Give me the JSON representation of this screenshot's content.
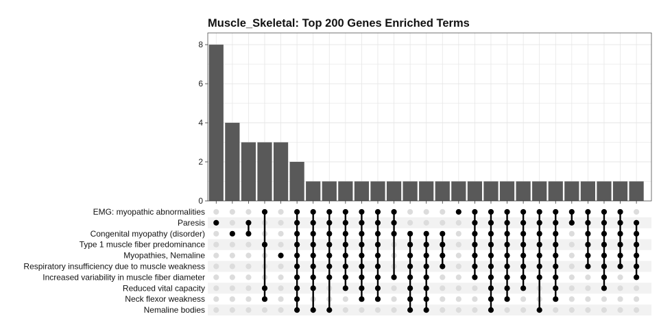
{
  "chart_data": {
    "type": "bar",
    "title": "Muscle_Skeletal: Top 200 Genes Enriched Terms",
    "xlabel": "",
    "ylabel": "",
    "ylim": [
      0,
      8.6
    ],
    "yticks": [
      0,
      2,
      4,
      6,
      8
    ],
    "grid": true,
    "colors": {
      "bar": "#595959",
      "dot_active": "#000000",
      "dot_inactive": "#dcdcdc",
      "stripe": "#f2f2f2",
      "grid": "#e6e6e6",
      "frame": "#333333"
    },
    "sets": [
      "EMG: myopathic abnormalities",
      "Paresis",
      "Congenital myopathy (disorder)",
      "Type 1 muscle fiber predominance",
      "Myopathies, Nemaline",
      "Respiratory insufficiency due to muscle weakness",
      "Increased variability in muscle fiber diameter",
      "Reduced vital capacity",
      "Neck flexor weakness",
      "Nemaline bodies"
    ],
    "values": [
      8,
      4,
      3,
      3,
      3,
      2,
      1,
      1,
      1,
      1,
      1,
      1,
      1,
      1,
      1,
      1,
      1,
      1,
      1,
      1,
      1,
      1,
      1,
      1,
      1,
      1,
      1
    ],
    "intersections": [
      [
        1
      ],
      [
        2
      ],
      [
        1,
        2
      ],
      [
        0,
        3,
        7,
        8
      ],
      [
        4
      ],
      [
        0,
        1,
        2,
        3,
        4,
        5,
        6,
        7,
        8,
        9
      ],
      [
        0,
        1,
        2,
        3,
        4,
        5,
        6,
        7,
        9
      ],
      [
        0,
        1,
        2,
        3,
        4,
        5,
        6,
        9
      ],
      [
        0,
        1,
        2,
        3,
        4,
        5,
        6,
        7
      ],
      [
        0,
        1,
        2,
        3,
        4,
        5,
        6,
        7,
        8
      ],
      [
        0,
        1,
        2,
        3,
        4,
        5,
        6,
        7,
        8
      ],
      [
        0,
        1,
        2,
        6
      ],
      [
        2,
        3,
        4,
        5,
        6,
        7,
        8,
        9
      ],
      [
        2,
        3,
        4,
        5,
        6,
        7,
        8,
        9
      ],
      [
        2,
        3,
        4,
        5
      ],
      [
        0
      ],
      [
        0,
        1,
        2,
        3,
        4,
        5,
        6
      ],
      [
        0,
        1,
        2,
        3,
        4,
        5,
        6,
        7,
        8,
        9
      ],
      [
        0,
        1,
        2,
        3,
        4,
        5,
        6,
        7,
        8
      ],
      [
        0,
        1,
        2,
        3,
        4,
        5,
        6,
        7
      ],
      [
        0,
        1,
        2,
        3,
        4,
        5,
        6,
        9
      ],
      [
        0,
        1,
        2,
        3,
        4,
        5,
        6,
        7,
        8
      ],
      [
        0,
        1
      ],
      [
        0,
        1,
        2,
        3,
        4,
        5
      ],
      [
        0,
        1,
        2,
        3,
        4,
        5,
        6,
        7
      ],
      [
        0,
        1,
        2,
        3,
        4,
        5
      ],
      [
        1,
        2,
        3,
        4,
        5,
        6
      ]
    ]
  }
}
